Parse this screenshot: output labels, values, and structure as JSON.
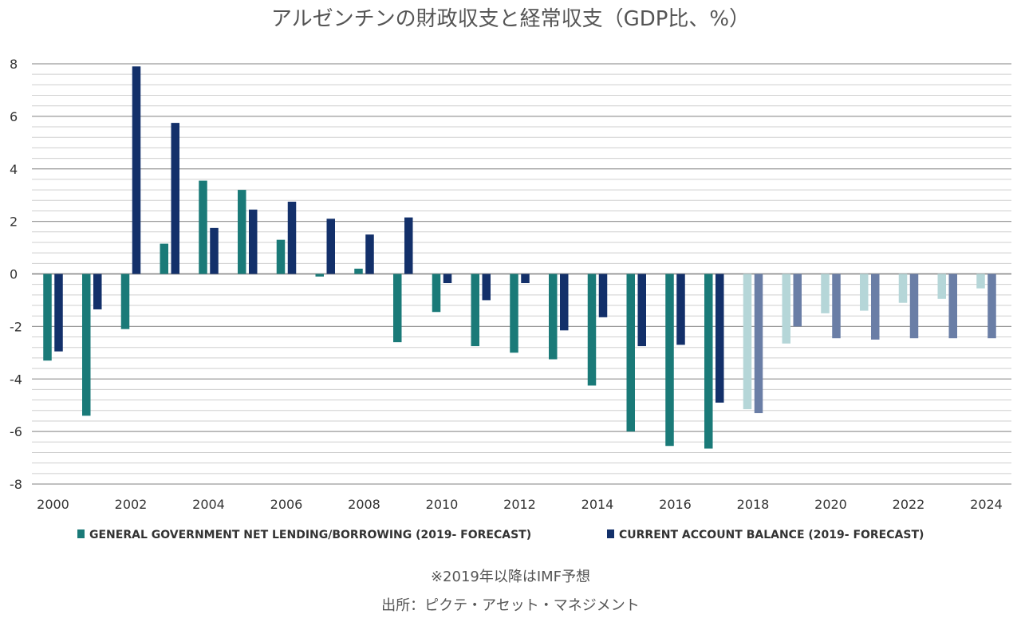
{
  "chart_data": {
    "type": "bar",
    "title": "アルゼンチンの財政収支と経常収支（GDP比、%）",
    "xlabel": "",
    "ylabel": "",
    "ylim": [
      -8,
      8
    ],
    "yticks": [
      8,
      6,
      4,
      2,
      0,
      -2,
      -4,
      -6,
      -8
    ],
    "grid": true,
    "legend_position": "bottom",
    "forecast_from": 2019,
    "categories": [
      2000,
      2001,
      2002,
      2003,
      2004,
      2005,
      2006,
      2007,
      2008,
      2009,
      2010,
      2011,
      2012,
      2013,
      2014,
      2015,
      2016,
      2017,
      2018,
      2019,
      2020,
      2021,
      2022,
      2023,
      2024
    ],
    "xtick_labels": [
      "2000",
      "2002",
      "2004",
      "2006",
      "2008",
      "2010",
      "2012",
      "2014",
      "2016",
      "2018",
      "2020",
      "2022",
      "2024"
    ],
    "series": [
      {
        "name": "GENERAL GOVERNMENT NET LENDING/BORROWING (2019- FORECAST)",
        "color": "#1a7a78",
        "forecast_color": "#b5d6d8",
        "values": [
          -3.3,
          -5.4,
          -2.1,
          1.15,
          3.55,
          3.2,
          1.3,
          -0.1,
          0.2,
          -2.6,
          -1.45,
          -2.75,
          -3.0,
          -3.25,
          -4.25,
          -6.0,
          -6.55,
          -6.65,
          -5.15,
          -2.65,
          -1.5,
          -1.4,
          -1.1,
          -0.95,
          -0.55
        ]
      },
      {
        "name": "CURRENT ACCOUNT BALANCE (2019- FORECAST)",
        "color": "#13306a",
        "forecast_color": "#6a7ea6",
        "values": [
          -2.95,
          -1.35,
          7.9,
          5.75,
          1.75,
          2.45,
          2.75,
          2.1,
          1.5,
          2.15,
          -0.35,
          -1.0,
          -0.35,
          -2.15,
          -1.65,
          -2.75,
          -2.7,
          -4.9,
          -5.3,
          -2.0,
          -2.45,
          -2.5,
          -2.45,
          -2.45,
          -2.45
        ]
      }
    ]
  },
  "notes": {
    "forecast_note": "※2019年以降はIMF予想",
    "source": "出所：ピクテ・アセット・マネジメント"
  }
}
